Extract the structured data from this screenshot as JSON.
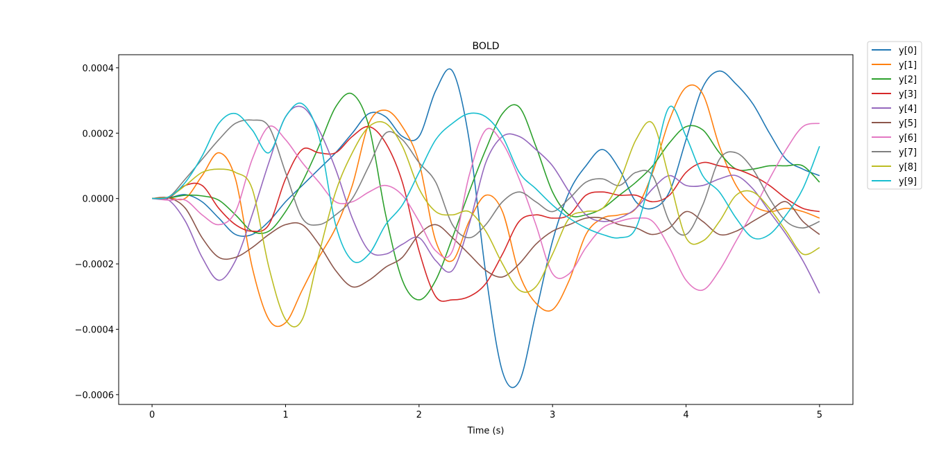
{
  "chart_data": {
    "type": "line",
    "title": "BOLD",
    "xlabel": "Time (s)",
    "ylabel": "",
    "xlim": [
      -0.25,
      5.25
    ],
    "ylim": [
      -0.00063,
      0.00044
    ],
    "xticks": [
      0,
      1,
      2,
      3,
      4,
      5
    ],
    "xtick_labels": [
      "0",
      "1",
      "2",
      "3",
      "4",
      "5"
    ],
    "yticks": [
      -0.0006,
      -0.0004,
      -0.0002,
      0.0,
      0.0002,
      0.0004
    ],
    "ytick_labels": [
      "−0.0006",
      "−0.0004",
      "−0.0002",
      "0.0000",
      "0.0002",
      "0.0004"
    ],
    "grid": false,
    "legend_position": "outside-top-right",
    "x": [
      0,
      0.125,
      0.25,
      0.375,
      0.5,
      0.625,
      0.75,
      0.875,
      1.0,
      1.125,
      1.25,
      1.375,
      1.5,
      1.625,
      1.75,
      1.875,
      2.0,
      2.125,
      2.25,
      2.375,
      2.5,
      2.625,
      2.75,
      2.875,
      3.0,
      3.125,
      3.25,
      3.375,
      3.5,
      3.625,
      3.75,
      3.875,
      4.0,
      4.125,
      4.25,
      4.375,
      4.5,
      4.625,
      4.75,
      4.875,
      5.0
    ],
    "series": [
      {
        "name": "y[0]",
        "color": "#1f77b4",
        "values": [
          0,
          2e-06,
          1.2e-05,
          -1e-05,
          -6e-05,
          -0.00011,
          -0.00011,
          -7e-05,
          -1e-05,
          4e-05,
          9e-05,
          0.00014,
          0.0002,
          0.00026,
          0.00025,
          0.00019,
          0.00019,
          0.00033,
          0.00039,
          0.00018,
          -0.00023,
          -0.00053,
          -0.00056,
          -0.00035,
          -0.00013,
          2e-05,
          0.0001,
          0.00015,
          9e-05,
          -1e-05,
          -3e-05,
          2e-05,
          0.00018,
          0.00034,
          0.00039,
          0.00035,
          0.00029,
          0.0002,
          0.00012,
          9e-05,
          7e-05
        ]
      },
      {
        "name": "y[1]",
        "color": "#ff7f0e",
        "values": [
          0,
          2e-06,
          1e-06,
          7e-05,
          0.00014,
          6e-05,
          -0.00021,
          -0.00037,
          -0.00038,
          -0.00028,
          -0.00018,
          -9e-05,
          4e-05,
          0.00023,
          0.00027,
          0.00022,
          0.00011,
          -0.00013,
          -0.00019,
          -7e-05,
          1e-05,
          -4e-05,
          -0.00023,
          -0.00032,
          -0.00034,
          -0.00025,
          -0.00011,
          -6e-05,
          -5e-05,
          -3e-05,
          8e-05,
          0.00024,
          0.00034,
          0.00032,
          0.00016,
          4e-05,
          -2e-05,
          -4e-05,
          -3e-05,
          -4e-05,
          -6e-05
        ]
      },
      {
        "name": "y[2]",
        "color": "#2ca02c",
        "values": [
          0,
          2e-06,
          1e-05,
          8e-06,
          -5e-06,
          -5e-05,
          -0.0001,
          -0.0001,
          -4e-05,
          5e-05,
          0.00016,
          0.00028,
          0.00032,
          0.00022,
          -5e-05,
          -0.00025,
          -0.00031,
          -0.00025,
          -0.00012,
          2e-05,
          0.00015,
          0.00026,
          0.00028,
          0.00016,
          2e-05,
          -5e-05,
          -5e-05,
          -3e-05,
          1e-05,
          5e-05,
          0.0001,
          0.00017,
          0.00022,
          0.00021,
          0.00014,
          9e-05,
          9e-05,
          0.0001,
          0.0001,
          0.0001,
          5e-05
        ]
      },
      {
        "name": "y[3]",
        "color": "#d62728",
        "values": [
          0,
          2e-06,
          4e-05,
          4e-05,
          -3e-05,
          -8e-05,
          -0.0001,
          -8e-05,
          6e-05,
          0.00015,
          0.00014,
          0.00014,
          0.00019,
          0.00022,
          0.00017,
          5e-05,
          -0.00016,
          -0.0003,
          -0.00031,
          -0.0003,
          -0.00026,
          -0.00017,
          -7e-05,
          -5e-05,
          -6e-05,
          -5e-05,
          1e-05,
          2e-05,
          1e-05,
          1e-05,
          -1e-05,
          1e-05,
          8e-05,
          0.00011,
          0.0001,
          9e-05,
          7e-05,
          4e-05,
          0,
          -3e-05,
          -4e-05
        ]
      },
      {
        "name": "y[4]",
        "color": "#9467bd",
        "values": [
          0,
          -5e-06,
          -7e-05,
          -0.00018,
          -0.00025,
          -0.00019,
          -5e-05,
          0.00011,
          0.00025,
          0.00028,
          0.00021,
          9e-05,
          -6e-05,
          -0.00016,
          -0.00017,
          -0.00014,
          -0.00012,
          -0.00019,
          -0.00022,
          -8e-05,
          0.00011,
          0.00019,
          0.00019,
          0.00015,
          0.0001,
          2e-05,
          -5e-05,
          -7e-05,
          -6e-05,
          -3e-05,
          3e-05,
          7e-05,
          4e-05,
          4e-05,
          6e-05,
          7e-05,
          3e-05,
          -4e-05,
          -0.00011,
          -0.00019,
          -0.00029
        ]
      },
      {
        "name": "y[5]",
        "color": "#8c564b",
        "values": [
          0,
          2e-06,
          -3e-05,
          -0.00012,
          -0.00018,
          -0.00018,
          -0.00015,
          -0.00011,
          -8e-05,
          -8e-05,
          -0.00014,
          -0.00022,
          -0.00027,
          -0.00025,
          -0.00021,
          -0.00018,
          -0.00011,
          -8e-05,
          -0.00012,
          -0.00017,
          -0.00022,
          -0.00024,
          -0.0002,
          -0.00014,
          -0.0001,
          -8e-05,
          -6e-05,
          -6e-05,
          -8e-05,
          -9e-05,
          -0.00011,
          -9e-05,
          -4e-05,
          -7e-05,
          -0.00011,
          -0.0001,
          -7e-05,
          -4e-05,
          -1e-05,
          -7e-05,
          -0.00011
        ]
      },
      {
        "name": "y[6]",
        "color": "#e377c2",
        "values": [
          0,
          -5e-06,
          -5e-06,
          -5e-05,
          -8e-05,
          -4e-05,
          0.00012,
          0.00022,
          0.00018,
          0.00011,
          5e-05,
          -1e-05,
          -1e-05,
          2e-05,
          4e-05,
          1e-05,
          -7e-05,
          -0.00016,
          -0.00016,
          7e-05,
          0.00021,
          0.00017,
          6e-05,
          -8e-05,
          -0.00023,
          -0.00023,
          -0.00015,
          -9e-05,
          -7e-05,
          -6e-05,
          -7e-05,
          -0.00015,
          -0.00025,
          -0.00028,
          -0.00022,
          -0.00013,
          -4e-05,
          6e-05,
          0.00015,
          0.00022,
          0.00023
        ]
      },
      {
        "name": "y[7]",
        "color": "#7f7f7f",
        "values": [
          0,
          5e-06,
          6e-05,
          0.00012,
          0.00018,
          0.00023,
          0.00024,
          0.00022,
          8e-05,
          -6e-05,
          -8e-05,
          -5e-05,
          0,
          0.0001,
          0.0002,
          0.00018,
          0.00011,
          5e-05,
          -8e-05,
          -0.00012,
          -8e-05,
          -1e-05,
          2e-05,
          -1e-05,
          -4e-05,
          0,
          5e-05,
          6e-05,
          4e-05,
          8e-05,
          7e-05,
          -7e-05,
          -0.00011,
          -2e-05,
          0.00012,
          0.00014,
          9e-05,
          0,
          -7e-05,
          -9e-05,
          -7e-05
        ]
      },
      {
        "name": "y[8]",
        "color": "#bcbd22",
        "values": [
          0,
          5e-06,
          4e-05,
          8e-05,
          9e-05,
          8e-05,
          3e-05,
          -0.00021,
          -0.00037,
          -0.00037,
          -0.00017,
          2e-05,
          0.00014,
          0.00022,
          0.00023,
          0.00016,
          3e-05,
          -4e-05,
          -5e-05,
          -4e-05,
          -0.0001,
          -0.0002,
          -0.00028,
          -0.00027,
          -0.00017,
          -6e-05,
          -4e-05,
          -3e-05,
          5e-05,
          0.00018,
          0.00023,
          6e-05,
          -0.00012,
          -0.00013,
          -7e-05,
          1e-05,
          2e-05,
          -3e-05,
          -0.0001,
          -0.00017,
          -0.00015
        ]
      },
      {
        "name": "y[9]",
        "color": "#17becf",
        "values": [
          0,
          5e-06,
          5e-05,
          0.00013,
          0.00023,
          0.00026,
          0.00021,
          0.00014,
          0.00025,
          0.00029,
          0.00019,
          -8e-05,
          -0.00019,
          -0.00017,
          -8e-05,
          -2e-05,
          8e-05,
          0.00018,
          0.00023,
          0.00026,
          0.00025,
          0.00019,
          8e-05,
          3e-05,
          -2e-05,
          -6e-05,
          -9e-05,
          -0.00011,
          -0.00012,
          -9e-05,
          9e-05,
          0.00028,
          0.00019,
          7e-05,
          2e-05,
          -6e-05,
          -0.00012,
          -0.00011,
          -5e-05,
          3e-05,
          0.00016
        ]
      }
    ]
  }
}
